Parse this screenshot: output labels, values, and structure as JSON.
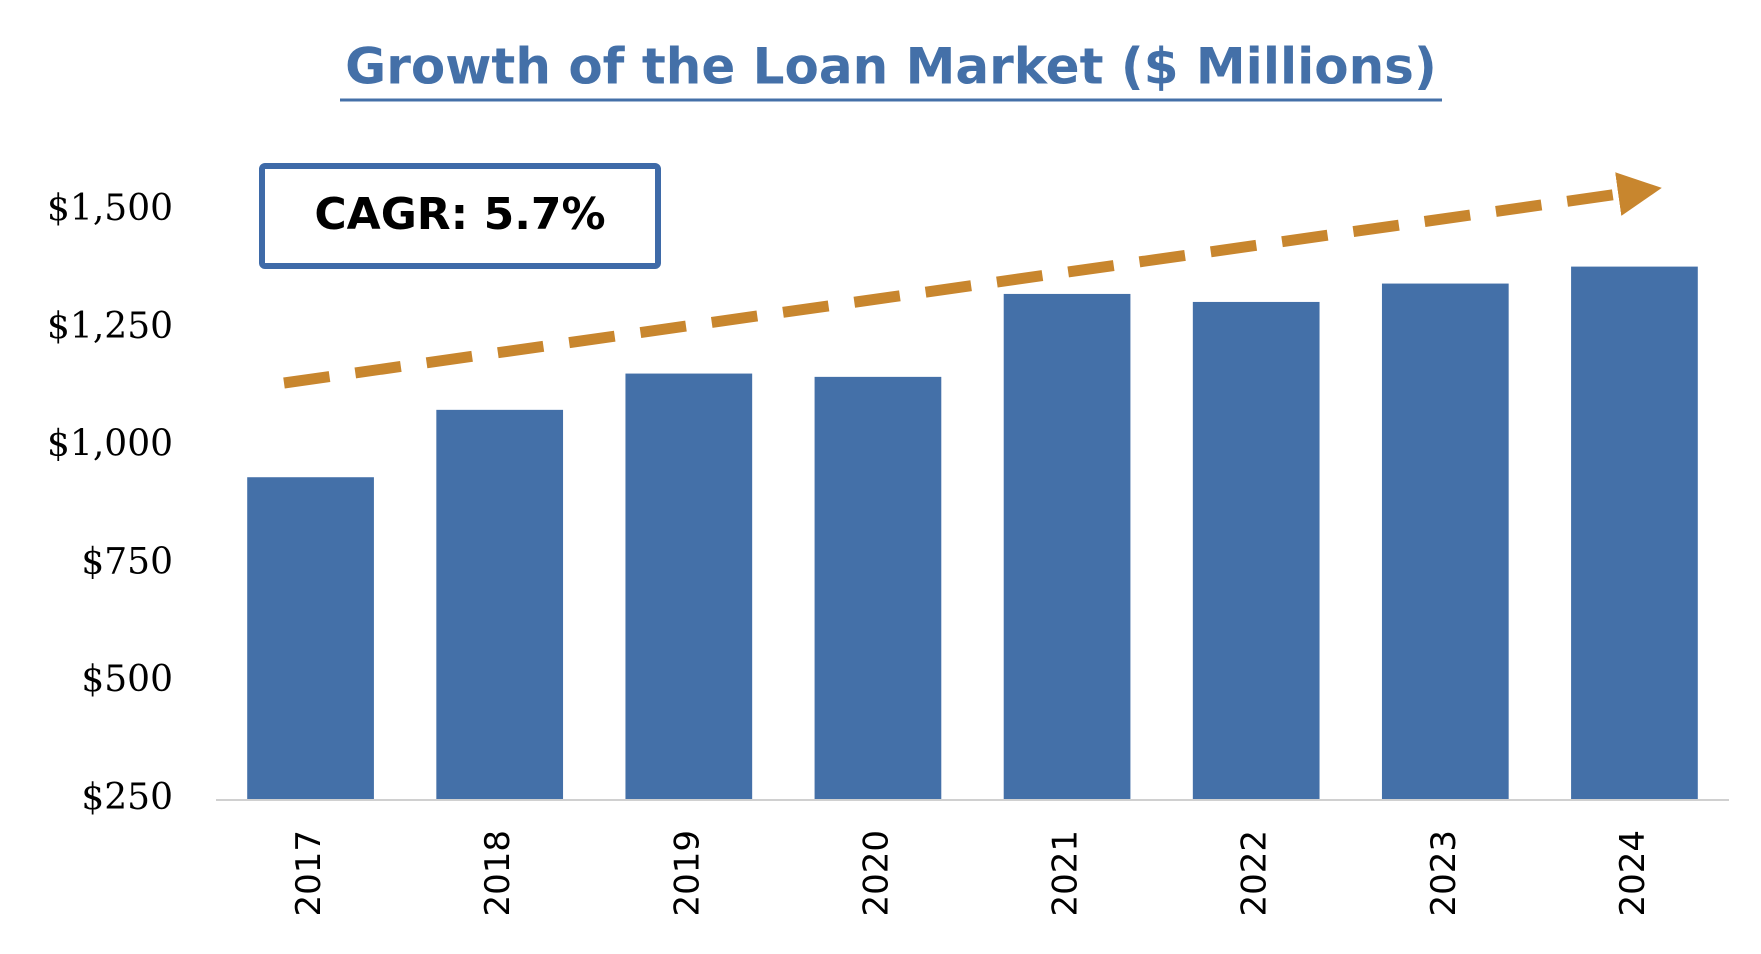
{
  "chart_data": {
    "type": "bar",
    "title": "Growth of the Loan Market ($ Millions)",
    "annotation": "CAGR: 5.7%",
    "categories": [
      "2017",
      "2018",
      "2019",
      "2020",
      "2021",
      "2022",
      "2023",
      "2024"
    ],
    "values": [
      935,
      1078,
      1155,
      1148,
      1324,
      1307,
      1346,
      1382
    ],
    "color": "#4470a8",
    "ylim": [
      250,
      1500
    ],
    "yticks": [
      {
        "value": 250,
        "label": "$250"
      },
      {
        "value": 500,
        "label": "$500"
      },
      {
        "value": 750,
        "label": "$750"
      },
      {
        "value": 1000,
        "label": "$1,000"
      },
      {
        "value": 1250,
        "label": "$1,250"
      },
      {
        "value": 1500,
        "label": "$1,500"
      }
    ],
    "grid": false
  }
}
